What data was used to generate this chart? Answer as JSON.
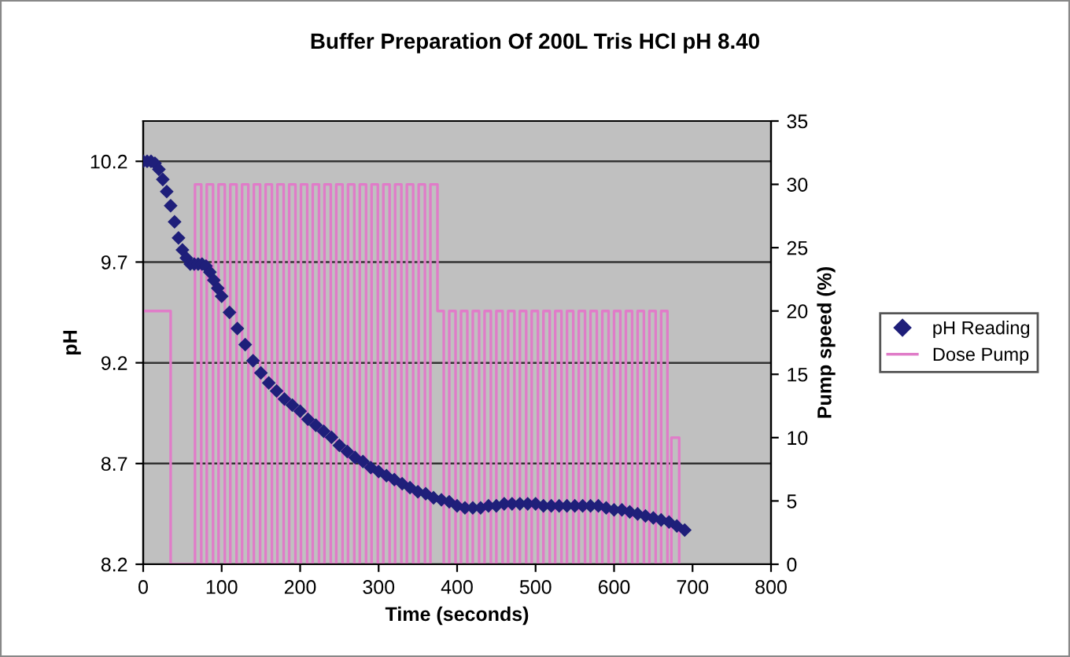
{
  "chart_data": {
    "type": "scatter",
    "title": "Buffer Preparation Of 200L Tris HCl pH 8.40",
    "xlabel": "Time (seconds)",
    "ylabel": "pH",
    "y2label": "Pump speed (%)",
    "xlim": [
      0,
      800
    ],
    "xticks": [
      0,
      100,
      200,
      300,
      400,
      500,
      600,
      700,
      800
    ],
    "ylim": [
      8.2,
      10.4
    ],
    "yticks": [
      8.2,
      8.7,
      9.2,
      9.7,
      10.2
    ],
    "y2lim": [
      0,
      35
    ],
    "y2ticks": [
      0,
      5,
      10,
      15,
      20,
      25,
      30,
      35
    ],
    "grid": "y",
    "legend": "right",
    "series": [
      {
        "name": "pH Reading",
        "marker": "diamond",
        "color": "#1f1f7a",
        "x": [
          0,
          5,
          10,
          15,
          20,
          25,
          30,
          35,
          40,
          45,
          50,
          55,
          60,
          65,
          70,
          75,
          80,
          85,
          90,
          95,
          100,
          110,
          120,
          130,
          140,
          150,
          160,
          170,
          180,
          190,
          200,
          210,
          220,
          230,
          240,
          250,
          260,
          270,
          280,
          290,
          300,
          310,
          320,
          330,
          340,
          350,
          360,
          370,
          380,
          390,
          400,
          410,
          420,
          430,
          440,
          450,
          460,
          470,
          480,
          490,
          500,
          510,
          520,
          530,
          540,
          550,
          560,
          570,
          580,
          590,
          600,
          610,
          620,
          630,
          640,
          650,
          660,
          670,
          680,
          690
        ],
        "values": [
          10.2,
          10.2,
          10.2,
          10.19,
          10.16,
          10.11,
          10.05,
          9.98,
          9.9,
          9.82,
          9.76,
          9.72,
          9.69,
          9.69,
          9.69,
          9.69,
          9.68,
          9.65,
          9.61,
          9.57,
          9.53,
          9.45,
          9.37,
          9.29,
          9.21,
          9.15,
          9.1,
          9.06,
          9.02,
          8.99,
          8.96,
          8.92,
          8.89,
          8.86,
          8.83,
          8.79,
          8.76,
          8.73,
          8.71,
          8.68,
          8.66,
          8.64,
          8.62,
          8.6,
          8.58,
          8.56,
          8.55,
          8.53,
          8.52,
          8.51,
          8.49,
          8.48,
          8.48,
          8.48,
          8.49,
          8.49,
          8.5,
          8.5,
          8.5,
          8.5,
          8.5,
          8.49,
          8.49,
          8.49,
          8.49,
          8.49,
          8.49,
          8.49,
          8.49,
          8.48,
          8.47,
          8.47,
          8.46,
          8.45,
          8.44,
          8.43,
          8.42,
          8.41,
          8.39,
          8.37
        ]
      },
      {
        "name": "Dose Pump",
        "type": "step",
        "axis": "y2",
        "marker": "none",
        "line_style": "solid",
        "color": "#e07cc8",
        "x": [
          0,
          35,
          66,
          74,
          81,
          89,
          96,
          104,
          111,
          119,
          126,
          134,
          141,
          149,
          156,
          164,
          171,
          179,
          186,
          194,
          201,
          209,
          216,
          224,
          231,
          239,
          246,
          254,
          261,
          269,
          276,
          284,
          291,
          299,
          306,
          314,
          321,
          329,
          336,
          344,
          351,
          359,
          366,
          375,
          383,
          390,
          398,
          405,
          413,
          420,
          428,
          435,
          443,
          450,
          458,
          465,
          473,
          480,
          488,
          495,
          503,
          510,
          518,
          525,
          533,
          540,
          548,
          555,
          563,
          570,
          578,
          585,
          593,
          600,
          608,
          615,
          623,
          630,
          638,
          645,
          653,
          660,
          668,
          673,
          683
        ],
        "values": [
          20,
          0,
          30,
          0,
          30,
          0,
          30,
          0,
          30,
          0,
          30,
          0,
          30,
          0,
          30,
          0,
          30,
          0,
          30,
          0,
          30,
          0,
          30,
          0,
          30,
          0,
          30,
          0,
          30,
          0,
          30,
          0,
          30,
          0,
          30,
          0,
          30,
          0,
          30,
          0,
          30,
          0,
          30,
          20,
          0,
          20,
          0,
          20,
          0,
          20,
          0,
          20,
          0,
          20,
          0,
          20,
          0,
          20,
          0,
          20,
          0,
          20,
          0,
          20,
          0,
          20,
          0,
          20,
          0,
          20,
          0,
          20,
          0,
          20,
          0,
          20,
          0,
          20,
          0,
          20,
          0,
          20,
          0,
          10,
          0
        ]
      }
    ]
  }
}
